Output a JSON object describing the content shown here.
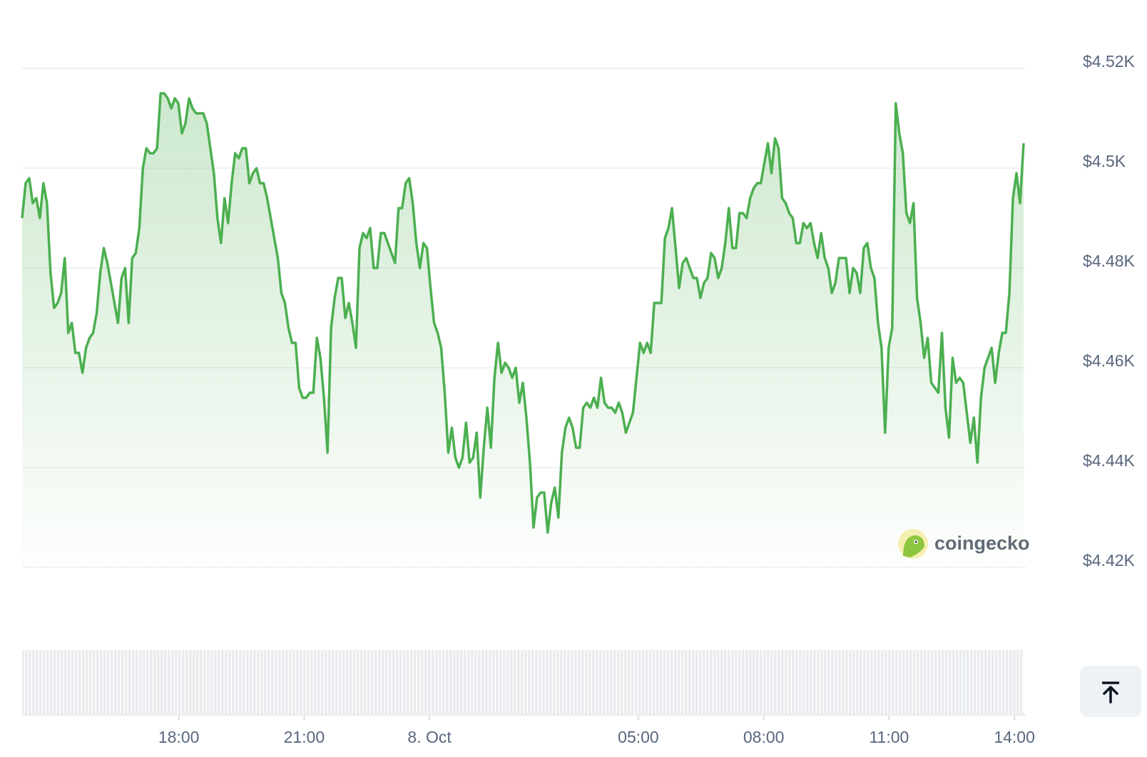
{
  "chart_data": {
    "type": "line",
    "color": "#4caf50",
    "watermark": "coingecko",
    "xlim": [
      14.25,
      38.22
    ],
    "ylim": [
      4420,
      4525
    ],
    "grid": true,
    "xticks": [
      {
        "value": 18,
        "label": "18:00"
      },
      {
        "value": 21,
        "label": "21:00"
      },
      {
        "value": 24,
        "label": "8. Oct"
      },
      {
        "value": 29,
        "label": "05:00"
      },
      {
        "value": 32,
        "label": "08:00"
      },
      {
        "value": 35,
        "label": "11:00"
      },
      {
        "value": 38,
        "label": "14:00"
      }
    ],
    "yticks": [
      {
        "value": 4420,
        "label": "$4.42K"
      },
      {
        "value": 4440,
        "label": "$4.44K"
      },
      {
        "value": 4460,
        "label": "$4.46K"
      },
      {
        "value": 4480,
        "label": "$4.48K"
      },
      {
        "value": 4500,
        "label": "$4.5K"
      },
      {
        "value": 4520,
        "label": "$4.52K"
      }
    ],
    "x": [
      14.25,
      14.335,
      14.42,
      14.505,
      14.59,
      14.675,
      14.76,
      14.845,
      14.93,
      15.015,
      15.1,
      15.185,
      15.27,
      15.355,
      15.44,
      15.525,
      15.61,
      15.695,
      15.78,
      15.865,
      15.95,
      16.035,
      16.12,
      16.205,
      16.29,
      16.375,
      16.46,
      16.545,
      16.63,
      16.715,
      16.8,
      16.885,
      16.97,
      17.055,
      17.14,
      17.225,
      17.31,
      17.395,
      17.48,
      17.565,
      17.65,
      17.735,
      17.82,
      17.905,
      17.99,
      18.075,
      18.16,
      18.245,
      18.33,
      18.415,
      18.5,
      18.585,
      18.67,
      18.755,
      18.84,
      18.925,
      19.01,
      19.095,
      19.18,
      19.265,
      19.35,
      19.435,
      19.52,
      19.605,
      19.69,
      19.775,
      19.86,
      19.945,
      20.03,
      20.115,
      20.2,
      20.285,
      20.37,
      20.455,
      20.54,
      20.625,
      20.71,
      20.795,
      20.88,
      20.965,
      21.05,
      21.135,
      21.22,
      21.305,
      21.39,
      21.475,
      21.56,
      21.645,
      21.73,
      21.815,
      21.9,
      21.985,
      22.07,
      22.155,
      22.24,
      22.325,
      22.41,
      22.495,
      22.58,
      22.665,
      22.75,
      22.835,
      22.92,
      23.005,
      23.09,
      23.175,
      23.26,
      23.345,
      23.43,
      23.515,
      23.6,
      23.685,
      23.77,
      23.855,
      23.94,
      24.025,
      24.11,
      24.195,
      24.28,
      24.365,
      24.45,
      24.535,
      24.62,
      24.705,
      24.79,
      24.875,
      24.96,
      25.045,
      25.13,
      25.215,
      25.3,
      25.385,
      25.47,
      25.555,
      25.64,
      25.725,
      25.81,
      25.895,
      25.98,
      26.065,
      26.15,
      26.235,
      26.32,
      26.405,
      26.49,
      26.575,
      26.66,
      26.745,
      26.83,
      26.915,
      27,
      27.085,
      27.17,
      27.255,
      27.34,
      27.425,
      27.51,
      27.595,
      27.68,
      27.765,
      27.85,
      27.935,
      28.02,
      28.105,
      28.19,
      28.275,
      28.36,
      28.445,
      28.53,
      28.615,
      28.7,
      28.785,
      28.87,
      28.955,
      29.04,
      29.125,
      29.21,
      29.295,
      29.38,
      29.465,
      29.55,
      29.635,
      29.72,
      29.805,
      29.89,
      29.975,
      30.06,
      30.145,
      30.23,
      30.315,
      30.4,
      30.485,
      30.57,
      30.655,
      30.74,
      30.825,
      30.91,
      30.995,
      31.08,
      31.165,
      31.25,
      31.335,
      31.42,
      31.505,
      31.59,
      31.675,
      31.76,
      31.845,
      31.93,
      32.015,
      32.1,
      32.185,
      32.27,
      32.355,
      32.44,
      32.525,
      32.61,
      32.695,
      32.78,
      32.865,
      32.95,
      33.035,
      33.12,
      33.205,
      33.29,
      33.375,
      33.46,
      33.545,
      33.63,
      33.715,
      33.8,
      33.885,
      33.97,
      34.055,
      34.14,
      34.225,
      34.31,
      34.395,
      34.48,
      34.565,
      34.65,
      34.735,
      34.82,
      34.905,
      34.99,
      35.075,
      35.16,
      35.245,
      35.33,
      35.415,
      35.5,
      35.585,
      35.67,
      35.755,
      35.84,
      35.925,
      36.01,
      36.095,
      36.18,
      36.265,
      36.35,
      36.435,
      36.52,
      36.605,
      36.69,
      36.775,
      36.86,
      36.945,
      37.03,
      37.115,
      37.2,
      37.285,
      37.37,
      37.455,
      37.54,
      37.625,
      37.71,
      37.795,
      37.88,
      37.965,
      38.05,
      38.135,
      38.22
    ],
    "values": [
      4490,
      4497,
      4498,
      4493,
      4494,
      4490,
      4497,
      4493,
      4479,
      4472,
      4473,
      4475,
      4482,
      4467,
      4469,
      4463,
      4463,
      4459,
      4464,
      4466,
      4467,
      4471,
      4479,
      4484,
      4481,
      4477,
      4473,
      4469,
      4478,
      4480,
      4469,
      4482,
      4483,
      4488,
      4500,
      4504,
      4503,
      4503,
      4504,
      4515,
      4515,
      4514,
      4512,
      4514,
      4513,
      4507,
      4509,
      4514,
      4512,
      4511,
      4511,
      4511,
      4509,
      4504,
      4499,
      4490,
      4485,
      4494,
      4489,
      4497,
      4503,
      4502,
      4504,
      4504,
      4497,
      4499,
      4500,
      4497,
      4497,
      4494,
      4490,
      4486,
      4482,
      4475,
      4473,
      4468,
      4465,
      4465,
      4456,
      4454,
      4454,
      4455,
      4455,
      4466,
      4462,
      4454,
      4443,
      4468,
      4474,
      4478,
      4478,
      4470,
      4473,
      4469,
      4464,
      4484,
      4487,
      4486,
      4488,
      4480,
      4480,
      4487,
      4487,
      4485,
      4483,
      4481,
      4492,
      4492,
      4497,
      4498,
      4493,
      4485,
      4480,
      4485,
      4484,
      4476,
      4469,
      4467,
      4464,
      4455,
      4443,
      4448,
      4442,
      4440,
      4442,
      4449,
      4441,
      4442,
      4447,
      4434,
      4444,
      4452,
      4444,
      4458,
      4465,
      4459,
      4461,
      4460,
      4458,
      4460,
      4453,
      4457,
      4450,
      4441,
      4428,
      4434,
      4435,
      4435,
      4427,
      4433,
      4436,
      4430,
      4443,
      4448,
      4450,
      4448,
      4444,
      4444,
      4452,
      4453,
      4452,
      4454,
      4452,
      4458,
      4453,
      4452,
      4452,
      4451,
      4453,
      4451,
      4447,
      4449,
      4451,
      4458,
      4465,
      4463,
      4465,
      4463,
      4473,
      4473,
      4473,
      4486,
      4488,
      4492,
      4484,
      4476,
      4481,
      4482,
      4480,
      4478,
      4478,
      4474,
      4477,
      4478,
      4483,
      4482,
      4478,
      4480,
      4485,
      4492,
      4484,
      4484,
      4491,
      4491,
      4490,
      4494,
      4496,
      4497,
      4497,
      4501,
      4505,
      4499,
      4506,
      4504,
      4494,
      4493,
      4491,
      4490,
      4485,
      4485,
      4489,
      4488,
      4489,
      4485,
      4482,
      4487,
      4482,
      4480,
      4475,
      4477,
      4482,
      4482,
      4482,
      4475,
      4480,
      4479,
      4475,
      4484,
      4485,
      4480,
      4478,
      4469,
      4464,
      4447,
      4464,
      4468,
      4513,
      4507,
      4503,
      4491,
      4489,
      4493,
      4474,
      4469,
      4462,
      4466,
      4457,
      4456,
      4455,
      4467,
      4452,
      4446,
      4462,
      4457,
      4458,
      4457,
      4451,
      4445,
      4450,
      4441,
      4454,
      4460,
      4462,
      4464,
      4457,
      4463,
      4467,
      4467,
      4475,
      4494,
      4499,
      4493,
      4505
    ]
  }
}
